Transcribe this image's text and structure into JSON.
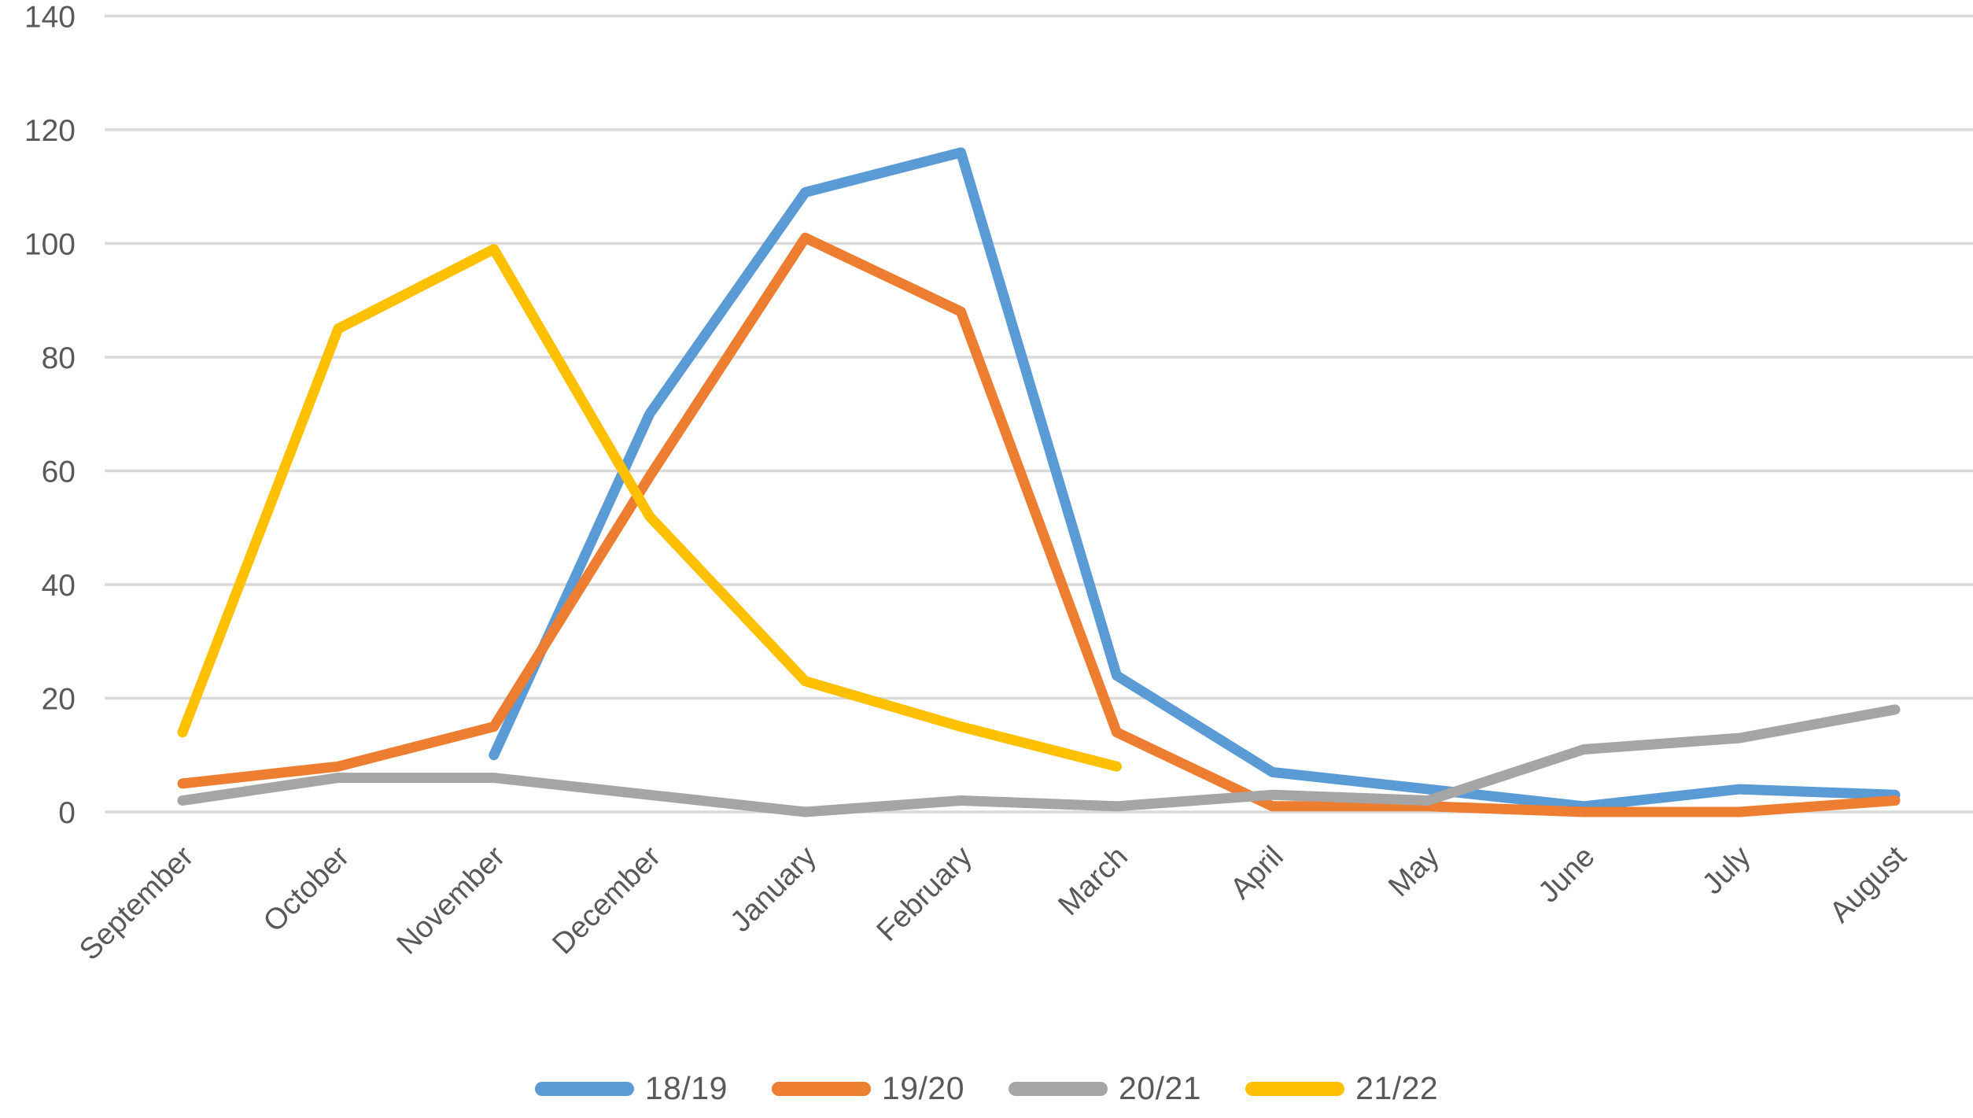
{
  "page": {
    "background": "#ffffff"
  },
  "chart_data": {
    "type": "line",
    "title": "",
    "xlabel": "",
    "ylabel": "",
    "categories": [
      "September",
      "October",
      "November",
      "December",
      "January",
      "February",
      "March",
      "April",
      "May",
      "June",
      "July",
      "August"
    ],
    "series": [
      {
        "name": "18/19",
        "color": "#5B9BD5",
        "values": [
          null,
          null,
          10,
          70,
          109,
          116,
          24,
          7,
          4,
          1,
          4,
          3
        ]
      },
      {
        "name": "19/20",
        "color": "#ED7D31",
        "values": [
          5,
          8,
          15,
          59,
          101,
          88,
          14,
          1,
          1,
          0,
          0,
          2
        ]
      },
      {
        "name": "20/21",
        "color": "#A5A5A5",
        "values": [
          2,
          6,
          6,
          3,
          0,
          2,
          1,
          3,
          2,
          11,
          13,
          18
        ]
      },
      {
        "name": "21/22",
        "color": "#FFC000",
        "values": [
          14,
          85,
          99,
          52,
          23,
          15,
          8,
          null,
          null,
          null,
          null,
          null
        ]
      }
    ],
    "ylim": [
      0,
      140
    ],
    "ytick_step": 20,
    "y_tick_labels": [
      "0",
      "20",
      "40",
      "60",
      "80",
      "100",
      "120",
      "140"
    ],
    "grid": true,
    "gridline_color": "#D9D9D9",
    "axis_text_color": "#595959",
    "legend_position": "bottom",
    "legend_labels": [
      "18/19",
      "19/20",
      "20/21",
      "21/22"
    ]
  }
}
